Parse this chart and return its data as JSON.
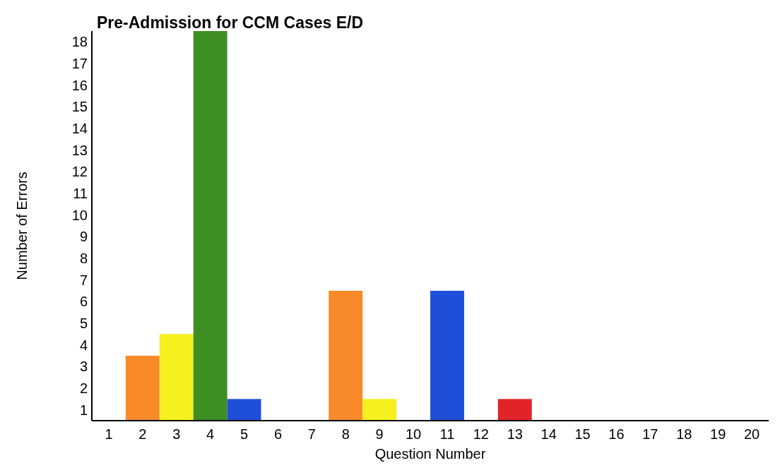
{
  "chart_data": {
    "type": "bar",
    "title": "Pre-Admission for CCM Cases E/D",
    "xlabel": "Question Number",
    "ylabel": "Number of Errors",
    "categories": [
      "1",
      "2",
      "3",
      "4",
      "5",
      "6",
      "7",
      "8",
      "9",
      "10",
      "11",
      "12",
      "13",
      "14",
      "15",
      "16",
      "17",
      "18",
      "19",
      "20"
    ],
    "values": [
      null,
      3.5,
      4.5,
      18.5,
      1.5,
      null,
      null,
      6.5,
      1.5,
      null,
      6.5,
      null,
      1.5,
      null,
      null,
      null,
      null,
      null,
      null,
      null
    ],
    "colors": [
      null,
      "#f98a2a",
      "#f5f01e",
      "#3e8e24",
      "#1f4fd8",
      null,
      null,
      "#f98a2a",
      "#f5f01e",
      null,
      "#1f4fd8",
      null,
      "#e02428",
      null,
      null,
      null,
      null,
      null,
      null,
      null
    ],
    "ylim": [
      0.5,
      18.5
    ],
    "yticks": [
      1,
      2,
      3,
      4,
      5,
      6,
      7,
      8,
      9,
      10,
      11,
      12,
      13,
      14,
      15,
      16,
      17,
      18
    ]
  }
}
